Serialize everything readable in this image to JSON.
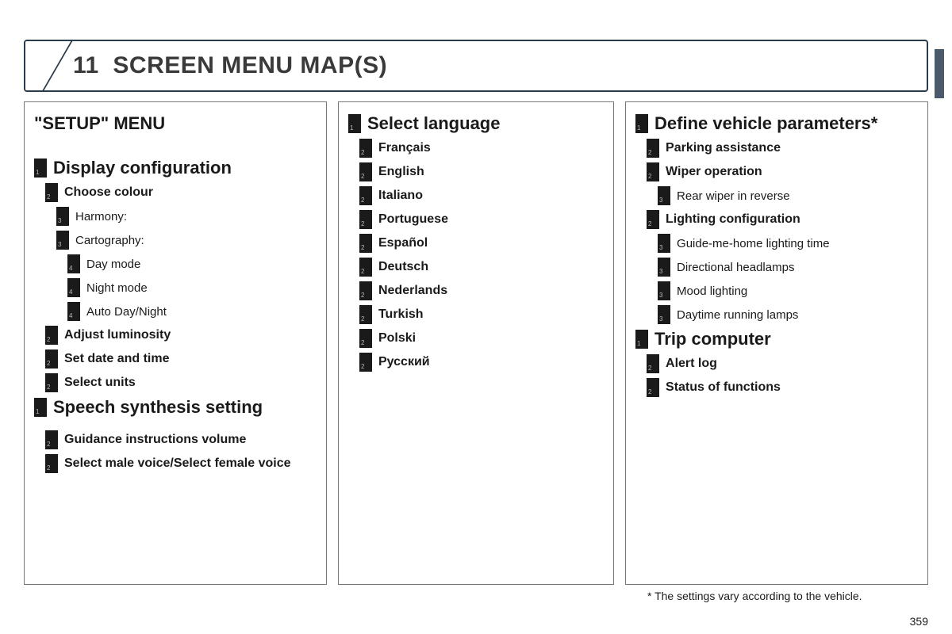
{
  "page": {
    "chapter_number": "11",
    "chapter_title": "SCREEN MENU MAP(S)",
    "page_number": "359",
    "footnote": "* The settings vary according to the vehicle."
  },
  "col1": {
    "setup_title": "\"SETUP\" MENU",
    "items": [
      {
        "lvl": 1,
        "num": "1",
        "text": "Display configuration"
      },
      {
        "lvl": 2,
        "num": "2",
        "text": "Choose colour",
        "bold": true
      },
      {
        "lvl": 3,
        "num": "3",
        "text": "Harmony:"
      },
      {
        "lvl": 3,
        "num": "3",
        "text": "Cartography:"
      },
      {
        "lvl": 4,
        "num": "4",
        "text": "Day mode"
      },
      {
        "lvl": 4,
        "num": "4",
        "text": "Night mode"
      },
      {
        "lvl": 4,
        "num": "4",
        "text": "Auto Day/Night"
      },
      {
        "lvl": 2,
        "num": "2",
        "text": "Adjust luminosity",
        "bold": true
      },
      {
        "lvl": 2,
        "num": "2",
        "text": "Set date and time",
        "bold": true
      },
      {
        "lvl": 2,
        "num": "2",
        "text": "Select units",
        "bold": true
      },
      {
        "lvl": 1,
        "num": "1",
        "text": "Speech synthesis setting"
      },
      {
        "lvl": 0,
        "text": ""
      },
      {
        "lvl": 2,
        "num": "2",
        "text": "Guidance instructions volume",
        "bold": true
      },
      {
        "lvl": 2,
        "num": "2",
        "text": "Select male voice/Select female voice",
        "bold": true
      }
    ]
  },
  "col2": {
    "items": [
      {
        "lvl": 1,
        "num": "1",
        "text": "Select language"
      },
      {
        "lvl": 2,
        "num": "2",
        "text": "Français",
        "bold": true
      },
      {
        "lvl": 2,
        "num": "2",
        "text": "English",
        "bold": true
      },
      {
        "lvl": 2,
        "num": "2",
        "text": "Italiano",
        "bold": true
      },
      {
        "lvl": 2,
        "num": "2",
        "text": "Portuguese",
        "bold": true
      },
      {
        "lvl": 2,
        "num": "2",
        "text": "Español",
        "bold": true
      },
      {
        "lvl": 2,
        "num": "2",
        "text": "Deutsch",
        "bold": true
      },
      {
        "lvl": 2,
        "num": "2",
        "text": "Nederlands",
        "bold": true
      },
      {
        "lvl": 2,
        "num": "2",
        "text": "Turkish",
        "bold": true
      },
      {
        "lvl": 2,
        "num": "2",
        "text": "Polski",
        "bold": true
      },
      {
        "lvl": 2,
        "num": "2",
        "text": "Русский",
        "bold": true
      }
    ]
  },
  "col3": {
    "items": [
      {
        "lvl": 1,
        "num": "1",
        "text": "Define vehicle parameters*"
      },
      {
        "lvl": 2,
        "num": "2",
        "text": "Parking assistance",
        "bold": true
      },
      {
        "lvl": 2,
        "num": "2",
        "text": "Wiper operation",
        "bold": true
      },
      {
        "lvl": 3,
        "num": "3",
        "text": "Rear wiper in reverse"
      },
      {
        "lvl": 2,
        "num": "2",
        "text": "Lighting configuration",
        "bold": true
      },
      {
        "lvl": 3,
        "num": "3",
        "text": "Guide-me-home lighting time"
      },
      {
        "lvl": 3,
        "num": "3",
        "text": "Directional headlamps"
      },
      {
        "lvl": 3,
        "num": "3",
        "text": "Mood lighting"
      },
      {
        "lvl": 3,
        "num": "3",
        "text": "Daytime running lamps"
      },
      {
        "lvl": 1,
        "num": "1",
        "text": "Trip computer"
      },
      {
        "lvl": 2,
        "num": "2",
        "text": "Alert log",
        "bold": true
      },
      {
        "lvl": 2,
        "num": "2",
        "text": "Status of functions",
        "bold": true
      }
    ]
  }
}
